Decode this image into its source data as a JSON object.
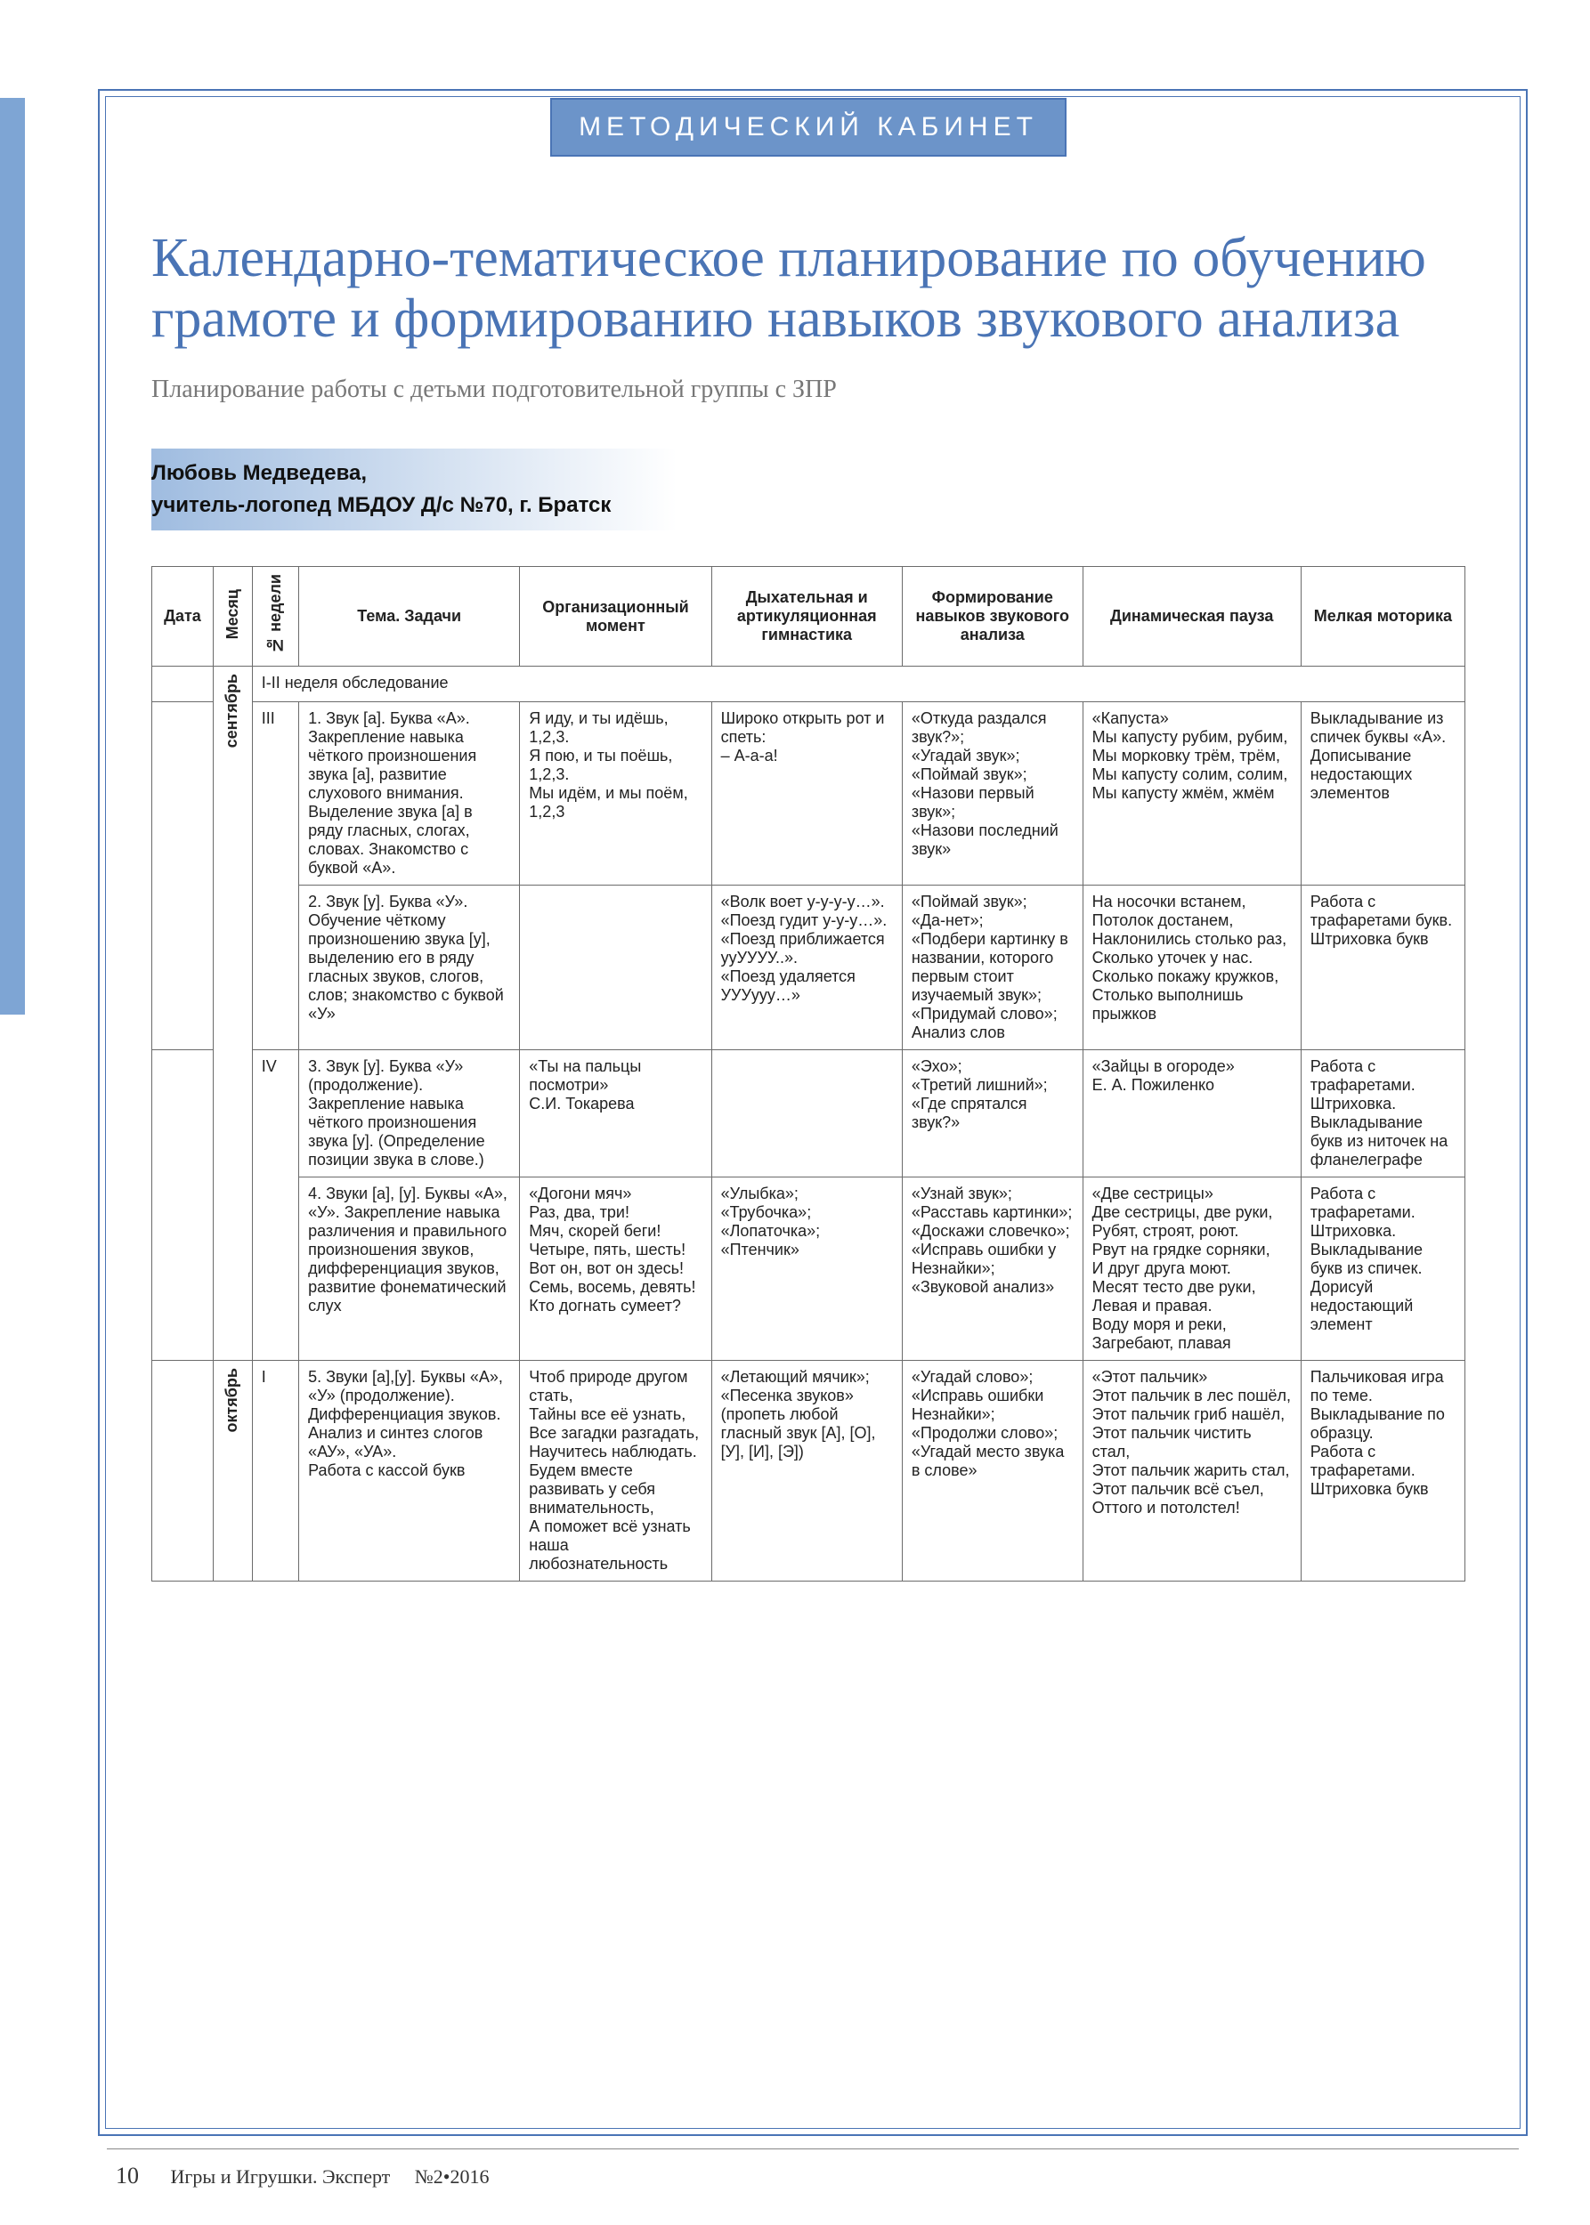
{
  "colors": {
    "accent": "#4a74b5",
    "band": "#6c94c9",
    "leftbar": "#7ea5d4",
    "border": "#6b6b6b"
  },
  "header_label": "МЕТОДИЧЕСКИЙ КАБИНЕТ",
  "title": "Календарно-тематическое планирование по обучению грамоте и формированию навыков звукового анализа",
  "subtitle": "Планирование работы с детьми подготовительной группы с ЗПР",
  "author_name": "Любовь Медведева,",
  "author_role": "учитель-логопед МБДОУ Д/с №70, г. Братск",
  "columns": {
    "date": "Дата",
    "month": "Месяц",
    "week": "№ недели",
    "theme": "Тема. Задачи",
    "org": "Организационный момент",
    "breath": "Дыхательная и артикуляционная гимнастика",
    "form": "Формирование навыков звукового анализа",
    "dyn": "Динамическая пауза",
    "motor": "Мелкая моторика"
  },
  "survey_label": "I-II неделя обследование",
  "months": {
    "sep": "сентябрь",
    "oct": "октябрь"
  },
  "rows": [
    {
      "week": "III",
      "theme": "1. Звук [а]. Буква «А». Закрепление навыка чёткого произношения звука [а], развитие слухового внимания. Выделение звука [а] в ряду гласных, слогах, словах. Знакомство с буквой «А».",
      "org": "Я иду, и ты идёшь,\n1,2,3.\nЯ пою, и ты поёшь,\n1,2,3.\nМы идём, и мы поём,\n1,2,3",
      "breath": "Широко открыть рот и спеть:\n– А-а-а!",
      "form": "«Откуда раздался звук?»;\n«Угадай звук»;\n«Поймай звук»;\n«Назови первый звук»;\n«Назови последний звук»",
      "dyn": "«Капуста»\nМы капусту рубим, рубим,\nМы морковку трём, трём,\nМы капусту солим, солим,\nМы капусту жмём, жмём",
      "motor": "Выкладывание из спичек буквы «А».\nДописывание недостающих элементов"
    },
    {
      "week": "",
      "theme": "2. Звук [у]. Буква «У». Обучение чёткому произношению звука [у], выделению его в ряду гласных звуков, слогов, слов; знакомство с буквой «У»",
      "org": "",
      "breath": "«Волк воет у-у-у-у…».\n«Поезд гудит у-у-у…».\n«Поезд приближается ууУУУУ..».\n«Поезд удаляется УУУууу…»",
      "form": "«Поймай звук»;\n«Да-нет»;\n«Подбери картинку в названии, которого первым стоит изучаемый звук»;\n«Придумай слово»;\nАнализ слов",
      "dyn": "На носочки встанем,\nПотолок достанем,\nНаклонились столько раз,\nСколько уточек у нас.\nСколько покажу кружков,\nСтолько выполнишь прыжков",
      "motor": "Работа с трафаретами букв.\nШтриховка букв"
    },
    {
      "week": "IV",
      "theme": "3. Звук [у]. Буква «У» (продолжение). Закрепление навыка чёткого произношения звука [у]. (Определение позиции звука в слове.)",
      "org": "«Ты на пальцы посмотри»\nС.И. Токарева",
      "breath": "",
      "form": "«Эхо»;\n«Третий лишний»;\n«Где спрятался звук?»",
      "dyn": "«Зайцы в огороде»\nЕ. А. Пожиленко",
      "motor": "Работа с трафаретами.\nШтриховка.\nВыкладывание букв из ниточек на фланелеграфе"
    },
    {
      "week": "",
      "theme": "4. Звуки [а], [у]. Буквы «А», «У». Закрепление навыка различения и правильного произношения звуков, дифференциация звуков, развитие фонематический слух",
      "org": "«Догони мяч»\nРаз, два, три!\nМяч, скорей беги! Четыре, пять, шесть! Вот он, вот он здесь! Семь, восемь, девять! Кто догнать сумеет?",
      "breath": "«Улыбка»;\n«Трубочка»;\n«Лопаточка»;\n«Птенчик»",
      "form": "«Узнай звук»;\n«Расставь картинки»;\n«Доскажи словечко»;\n«Исправь ошибки у Незнайки»;\n«Звуковой анализ»",
      "dyn": "«Две сестрицы»\nДве сестрицы, две руки,\nРубят, строят, роют.\nРвут на грядке сорняки,\nИ друг друга моют.\nМесят тесто две руки,\nЛевая и правая.\nВоду моря и реки,\nЗагребают, плавая",
      "motor": "Работа с трафаретами.\nШтриховка.\nВыкладывание букв из спичек.\nДорисуй недостающий элемент"
    },
    {
      "week": "I",
      "theme": "5. Звуки [а],[у]. Буквы «А», «У» (продолжение). Дифференциация звуков.\nАнализ и синтез слогов «АУ», «УА».\nРабота с кассой букв",
      "org": "Чтоб природе другом стать,\nТайны все её узнать,\nВсе загадки разгадать,\nНаучитесь наблюдать.\nБудем вместе развивать у себя внимательность,\nА поможет всё узнать наша любознательность",
      "breath": "«Летающий мячик»;\n«Песенка звуков» (пропеть любой гласный звук [А], [О], [У], [И], [Э])",
      "form": "«Угадай слово»;\n«Исправь ошибки Незнайки»;\n«Продолжи слово»;\n«Угадай место звука в слове»",
      "dyn": "«Этот пальчик»\nЭтот пальчик в лес пошёл,\nЭтот пальчик гриб нашёл,\nЭтот пальчик чистить стал,\nЭтот пальчик жарить стал,\nЭтот пальчик всё съел,\nОттого и потолстел!",
      "motor": "Пальчиковая игра по теме.\nВыкладывание по образцу.\nРабота с трафаретами.\nШтриховка букв"
    }
  ],
  "footer": {
    "page": "10",
    "journal": "Игры и Игрушки. Эксперт",
    "issue": "№2•2016"
  }
}
